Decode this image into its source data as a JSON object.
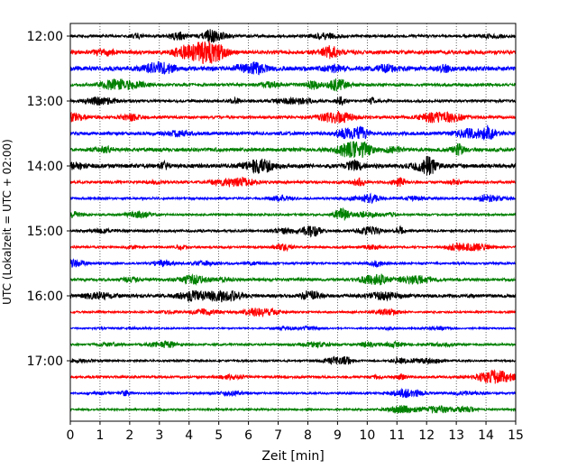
{
  "chart_data": {
    "type": "line",
    "xlabel": "Zeit  [min]",
    "ylabel": "UTC (Lokalzeit = UTC + 02:00)",
    "xlim": [
      0,
      15
    ],
    "x_ticks": [
      0,
      1,
      2,
      3,
      4,
      5,
      6,
      7,
      8,
      9,
      10,
      11,
      12,
      13,
      14,
      15
    ],
    "x_tick_labels": [
      "0",
      "1",
      "2",
      "3",
      "4",
      "5",
      "6",
      "7",
      "8",
      "9",
      "10",
      "11",
      "12",
      "13",
      "14",
      "15"
    ],
    "y_tick_labels": [
      "12:00",
      "13:00",
      "14:00",
      "15:00",
      "16:00",
      "17:00"
    ],
    "y_tick_rows": [
      0,
      4,
      8,
      12,
      16,
      20
    ],
    "grid": "vertical dotted",
    "color_cycle": [
      "#000000",
      "#ff0000",
      "#0000ff",
      "#008000"
    ],
    "series": [
      {
        "start": "12:00",
        "color": "#000000",
        "amplitude": 0.14
      },
      {
        "start": "12:15",
        "color": "#ff0000",
        "amplitude": 0.2
      },
      {
        "start": "12:30",
        "color": "#0000ff",
        "amplitude": 0.24
      },
      {
        "start": "12:45",
        "color": "#008000",
        "amplitude": 0.16
      },
      {
        "start": "13:00",
        "color": "#000000",
        "amplitude": 0.14
      },
      {
        "start": "13:15",
        "color": "#ff0000",
        "amplitude": 0.15
      },
      {
        "start": "13:30",
        "color": "#0000ff",
        "amplitude": 0.18
      },
      {
        "start": "13:45",
        "color": "#008000",
        "amplitude": 0.2
      },
      {
        "start": "14:00",
        "color": "#000000",
        "amplitude": 0.22
      },
      {
        "start": "14:15",
        "color": "#ff0000",
        "amplitude": 0.14
      },
      {
        "start": "14:30",
        "color": "#0000ff",
        "amplitude": 0.12
      },
      {
        "start": "14:45",
        "color": "#008000",
        "amplitude": 0.11
      },
      {
        "start": "15:00",
        "color": "#000000",
        "amplitude": 0.13
      },
      {
        "start": "15:15",
        "color": "#ff0000",
        "amplitude": 0.11
      },
      {
        "start": "15:30",
        "color": "#0000ff",
        "amplitude": 0.12
      },
      {
        "start": "15:45",
        "color": "#008000",
        "amplitude": 0.16
      },
      {
        "start": "16:00",
        "color": "#000000",
        "amplitude": 0.18
      },
      {
        "start": "16:15",
        "color": "#ff0000",
        "amplitude": 0.1
      },
      {
        "start": "16:30",
        "color": "#0000ff",
        "amplitude": 0.08
      },
      {
        "start": "16:45",
        "color": "#008000",
        "amplitude": 0.11
      },
      {
        "start": "17:00",
        "color": "#000000",
        "amplitude": 0.1
      },
      {
        "start": "17:15",
        "color": "#ff0000",
        "amplitude": 0.12
      },
      {
        "start": "17:30",
        "color": "#0000ff",
        "amplitude": 0.11
      },
      {
        "start": "17:45",
        "color": "#008000",
        "amplitude": 0.1
      }
    ]
  }
}
